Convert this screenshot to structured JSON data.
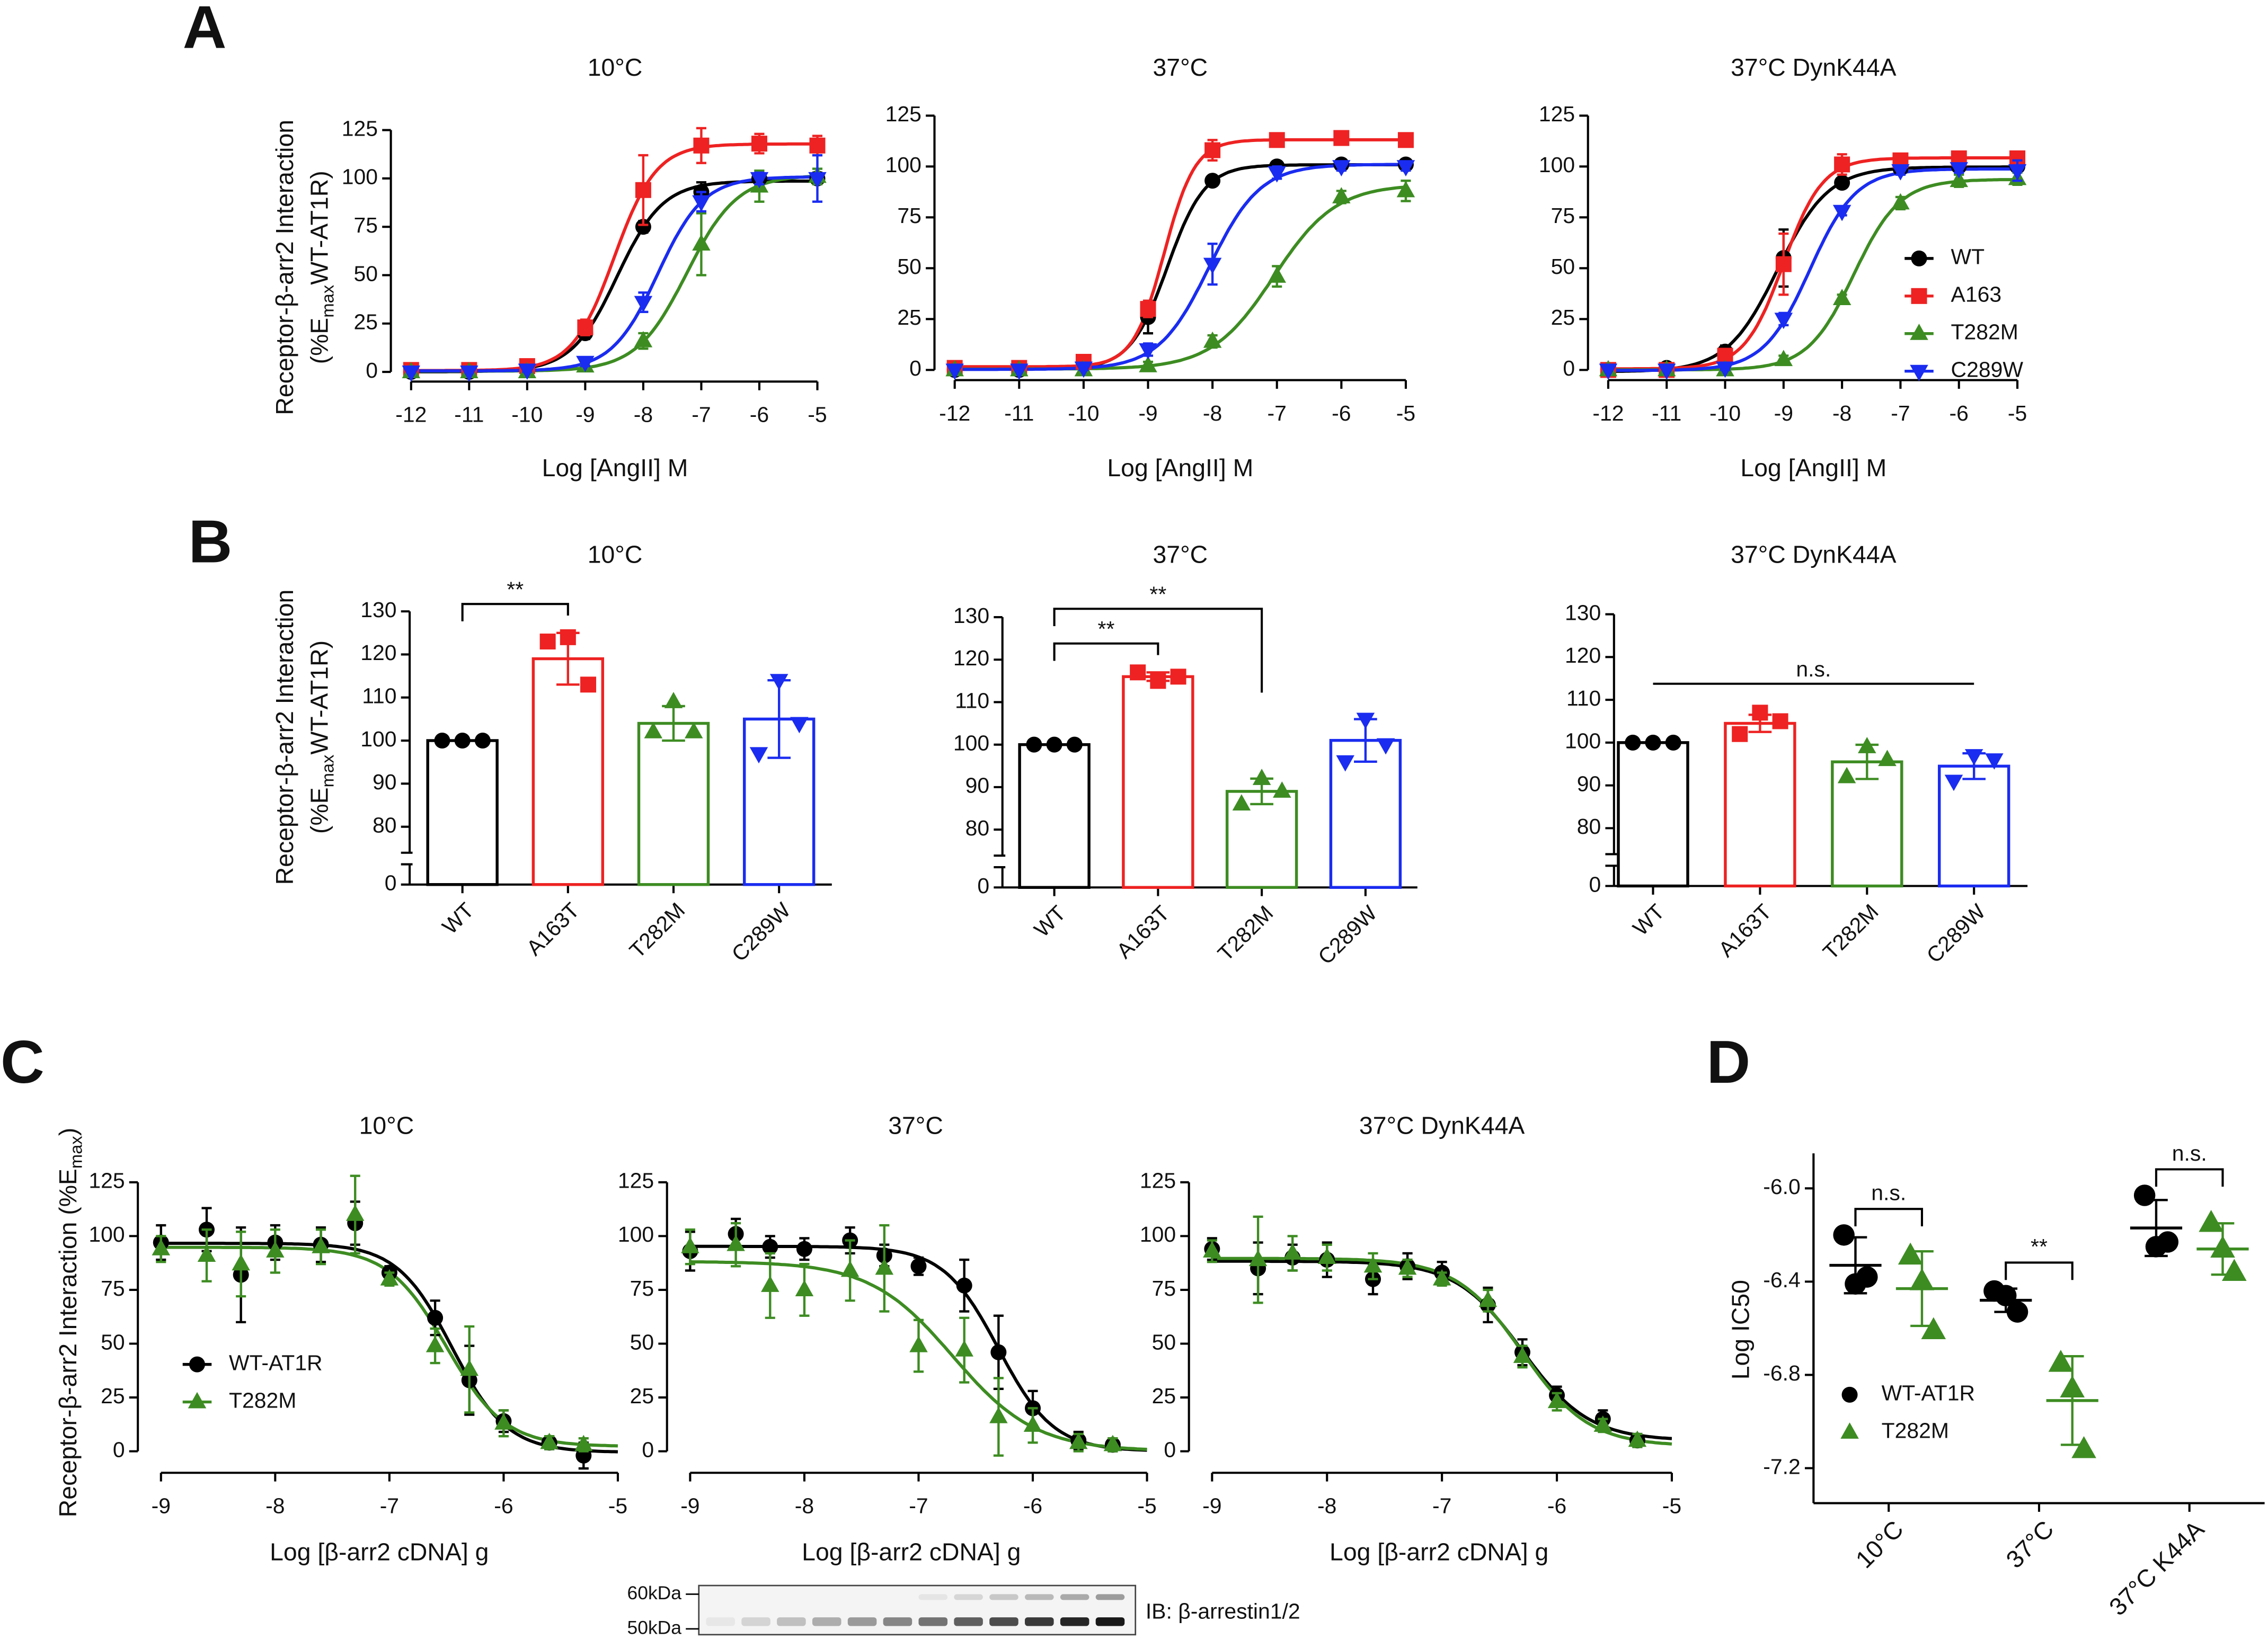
{
  "panel_labels": [
    "A",
    "B",
    "C",
    "D"
  ],
  "blot": {
    "markers": [
      "60kDa",
      "50kDa"
    ],
    "label": "IB: β-arrestin1/2"
  },
  "chart_data": [
    {
      "type": "line",
      "title": "10°C",
      "xlabel": "Log [AngII] M",
      "ylabel": [
        [
          "Receptor-β-arr2 Interaction"
        ],
        [
          "(%E",
          {
            "sub": "max"
          },
          "WT-AT1R)"
        ]
      ],
      "x": [
        -12,
        -11,
        -10,
        -9,
        -8,
        -7,
        -6,
        -5
      ],
      "xlim": [
        -12,
        -5
      ],
      "xticks": [
        -12,
        -11,
        -10,
        -9,
        -8,
        -7,
        -6,
        -5
      ],
      "ylim": [
        -5,
        125
      ],
      "yticks": [
        0,
        25,
        50,
        75,
        100,
        125
      ],
      "series": [
        {
          "color": "#000000",
          "marker": "circle",
          "values": [
            0,
            0,
            2,
            20,
            75,
            93,
            100,
            100
          ],
          "errors": [
            0,
            0,
            1,
            3,
            3,
            5,
            4,
            3
          ]
        },
        {
          "color": "#ee2222",
          "marker": "square",
          "values": [
            1,
            1,
            3,
            23,
            94,
            117,
            118,
            117
          ],
          "errors": [
            1,
            1,
            2,
            4,
            18,
            9,
            5,
            5
          ]
        },
        {
          "color": "#3d8c22",
          "marker": "triangle-up",
          "values": [
            0,
            0,
            0,
            3,
            16,
            66,
            96,
            101
          ],
          "errors": [
            0,
            0,
            1,
            2,
            4,
            16,
            8,
            4
          ]
        },
        {
          "color": "#1a2cf0",
          "marker": "triangle-down",
          "values": [
            0,
            0,
            1,
            5,
            36,
            88,
            100,
            100
          ],
          "errors": [
            0,
            0,
            1,
            2,
            5,
            5,
            3,
            12
          ]
        }
      ]
    },
    {
      "type": "line",
      "title": "37°C",
      "xlabel": "Log [AngII] M",
      "x": [
        -12,
        -11,
        -10,
        -9,
        -8,
        -7,
        -6,
        -5
      ],
      "xlim": [
        -12,
        -5
      ],
      "xticks": [
        -12,
        -11,
        -10,
        -9,
        -8,
        -7,
        -6,
        -5
      ],
      "ylim": [
        -5,
        125
      ],
      "yticks": [
        0,
        25,
        50,
        75,
        100,
        125
      ],
      "series": [
        {
          "color": "#000000",
          "marker": "circle",
          "values": [
            0,
            0,
            3,
            26,
            93,
            100,
            101,
            101
          ],
          "errors": [
            1,
            0,
            2,
            8,
            2,
            2,
            1,
            1
          ]
        },
        {
          "color": "#ee2222",
          "marker": "square",
          "values": [
            1,
            1,
            4,
            30,
            108,
            113,
            114,
            113
          ],
          "errors": [
            1,
            1,
            2,
            4,
            5,
            3,
            2,
            2
          ]
        },
        {
          "color": "#3d8c22",
          "marker": "triangle-up",
          "values": [
            0,
            0,
            0,
            2,
            14,
            46,
            85,
            88
          ],
          "errors": [
            1,
            0,
            1,
            2,
            3,
            5,
            3,
            5
          ]
        },
        {
          "color": "#1a2cf0",
          "marker": "triangle-down",
          "values": [
            0,
            0,
            1,
            10,
            52,
            97,
            100,
            100
          ],
          "errors": [
            0,
            0,
            1,
            3,
            10,
            3,
            2,
            2
          ]
        }
      ]
    },
    {
      "type": "line",
      "title": "37°C DynK44A",
      "xlabel": "Log [AngII] M",
      "legend": "center right",
      "x": [
        -12,
        -11,
        -10,
        -9,
        -8,
        -7,
        -6,
        -5
      ],
      "xlim": [
        -12,
        -5
      ],
      "xticks": [
        -12,
        -11,
        -10,
        -9,
        -8,
        -7,
        -6,
        -5
      ],
      "ylim": [
        -5,
        125
      ],
      "yticks": [
        0,
        25,
        50,
        75,
        100,
        125
      ],
      "series": [
        {
          "name": "WT",
          "color": "#000000",
          "marker": "circle",
          "values": [
            0,
            1,
            9,
            55,
            92,
            99,
            100,
            100
          ],
          "errors": [
            1,
            2,
            3,
            14,
            2,
            2,
            2,
            2
          ]
        },
        {
          "name": "A163",
          "color": "#ee2222",
          "marker": "square",
          "values": [
            0,
            0,
            7,
            52,
            101,
            103,
            104,
            104
          ],
          "errors": [
            1,
            1,
            2,
            15,
            5,
            3,
            3,
            2
          ]
        },
        {
          "name": "T282M",
          "color": "#3d8c22",
          "marker": "triangle-up",
          "values": [
            0,
            0,
            0,
            5,
            35,
            82,
            93,
            94
          ],
          "errors": [
            0,
            0,
            1,
            2,
            2,
            3,
            3,
            3
          ]
        },
        {
          "name": "C289W",
          "color": "#1a2cf0",
          "marker": "triangle-down",
          "values": [
            0,
            0,
            1,
            25,
            78,
            98,
            99,
            98
          ],
          "errors": [
            0,
            0,
            1,
            3,
            2,
            2,
            2,
            5
          ]
        }
      ]
    },
    {
      "type": "bar",
      "title": "10°C",
      "axis_break": true,
      "ylabel": [
        [
          "Receptor-β-arr2 Interaction"
        ],
        [
          "(%E",
          {
            "sub": "max"
          },
          "WT-AT1R)"
        ]
      ],
      "categories": [
        "WT",
        "A163T",
        "T282M",
        "C289W"
      ],
      "colors": [
        "#000000",
        "#ee2222",
        "#3d8c22",
        "#1a2cf0"
      ],
      "markers": [
        "circle",
        "square",
        "triangle-up",
        "triangle-down"
      ],
      "values": [
        100,
        119,
        104,
        105
      ],
      "errors": [
        0,
        6,
        4,
        9
      ],
      "points": [
        [
          100,
          100,
          100
        ],
        [
          123,
          124,
          113
        ],
        [
          102,
          109,
          102
        ],
        [
          97,
          114,
          104
        ]
      ],
      "ylim": [
        0,
        130
      ],
      "yticks": [
        0,
        80,
        90,
        100,
        110,
        120,
        130
      ],
      "annotations": [
        {
          "text": "**",
          "between": [
            "WT",
            "A163T"
          ]
        }
      ]
    },
    {
      "type": "bar",
      "title": "37°C",
      "axis_break": true,
      "categories": [
        "WT",
        "A163T",
        "T282M",
        "C289W"
      ],
      "colors": [
        "#000000",
        "#ee2222",
        "#3d8c22",
        "#1a2cf0"
      ],
      "markers": [
        "circle",
        "square",
        "triangle-up",
        "triangle-down"
      ],
      "values": [
        100,
        116,
        89,
        101
      ],
      "errors": [
        0,
        1,
        3,
        5
      ],
      "points": [
        [
          100,
          100,
          100
        ],
        [
          117,
          115,
          116
        ],
        [
          86,
          92,
          89
        ],
        [
          96,
          106,
          100
        ]
      ],
      "ylim": [
        0,
        130
      ],
      "yticks": [
        0,
        80,
        90,
        100,
        110,
        120,
        130
      ],
      "annotations": [
        {
          "text": "**",
          "between": [
            "WT",
            "A163T"
          ]
        },
        {
          "text": "**",
          "between": [
            "WT",
            "T282M"
          ]
        }
      ]
    },
    {
      "type": "bar",
      "title": "37°C DynK44A",
      "axis_break": true,
      "categories": [
        "WT",
        "A163T",
        "T282M",
        "C289W"
      ],
      "colors": [
        "#000000",
        "#ee2222",
        "#3d8c22",
        "#1a2cf0"
      ],
      "markers": [
        "circle",
        "square",
        "triangle-up",
        "triangle-down"
      ],
      "values": [
        100,
        104.5,
        95.5,
        94.5
      ],
      "errors": [
        0,
        2,
        4,
        3
      ],
      "points": [
        [
          100,
          100,
          100
        ],
        [
          102,
          107,
          105
        ],
        [
          92,
          99,
          96
        ],
        [
          91,
          97,
          96
        ]
      ],
      "ylim": [
        0,
        130
      ],
      "yticks": [
        0,
        80,
        90,
        100,
        110,
        120,
        130
      ],
      "annotations": [
        {
          "text": "n.s.",
          "between": [
            "WT",
            "C289W"
          ],
          "ticks": false
        }
      ]
    },
    {
      "type": "line",
      "title": "10°C",
      "xlabel": "Log [β-arr2 cDNA] g",
      "legend": "lower left",
      "ylabel": [
        [
          "Receptor-β-arr2 Interaction (%E",
          {
            "sub": "max"
          },
          ")"
        ]
      ],
      "x": [
        -9,
        -8.6,
        -8.3,
        -8,
        -7.6,
        -7.3,
        -7,
        -6.6,
        -6.3,
        -6,
        -5.6,
        -5.3
      ],
      "xlim": [
        -9,
        -5
      ],
      "xticks": [
        -9,
        -8,
        -7,
        -6,
        -5
      ],
      "ylim": [
        -10,
        125
      ],
      "yticks": [
        0,
        25,
        50,
        75,
        100,
        125
      ],
      "series": [
        {
          "name": "WT-AT1R",
          "color": "#000000",
          "marker": "circle",
          "values": [
            97,
            103,
            82,
            97,
            96,
            106,
            83,
            62,
            33,
            14,
            4,
            -2
          ],
          "errors": [
            8,
            10,
            22,
            8,
            8,
            10,
            3,
            8,
            16,
            5,
            3,
            6
          ]
        },
        {
          "name": "T282M",
          "color": "#3d8c22",
          "marker": "triangle-up",
          "values": [
            94,
            91,
            87,
            93,
            95,
            110,
            80,
            49,
            38,
            13,
            4,
            3
          ],
          "errors": [
            6,
            12,
            15,
            10,
            8,
            18,
            3,
            8,
            20,
            6,
            3,
            3
          ]
        }
      ]
    },
    {
      "type": "line",
      "title": "37°C",
      "xlabel": "Log [β-arr2 cDNA] g",
      "x": [
        -9,
        -8.6,
        -8.3,
        -8,
        -7.6,
        -7.3,
        -7,
        -6.6,
        -6.3,
        -6,
        -5.6,
        -5.3
      ],
      "xlim": [
        -9,
        -5
      ],
      "xticks": [
        -9,
        -8,
        -7,
        -6,
        -5
      ],
      "ylim": [
        -10,
        125
      ],
      "yticks": [
        0,
        25,
        50,
        75,
        100,
        125
      ],
      "series": [
        {
          "color": "#000000",
          "marker": "circle",
          "values": [
            93,
            101,
            95,
            94,
            98,
            91,
            86,
            77,
            46,
            20,
            5,
            3
          ],
          "errors": [
            9,
            7,
            5,
            5,
            6,
            5,
            4,
            12,
            17,
            8,
            4,
            3
          ]
        },
        {
          "color": "#3d8c22",
          "marker": "triangle-up",
          "values": [
            95,
            96,
            77,
            75,
            84,
            85,
            49,
            47,
            16,
            12,
            4,
            3
          ],
          "errors": [
            8,
            10,
            15,
            12,
            14,
            20,
            12,
            15,
            18,
            8,
            4,
            3
          ]
        }
      ]
    },
    {
      "type": "line",
      "title": "37°C DynK44A",
      "xlabel": "Log [β-arr2 cDNA] g",
      "x": [
        -9,
        -8.6,
        -8.3,
        -8,
        -7.6,
        -7.3,
        -7,
        -6.6,
        -6.3,
        -6,
        -5.6,
        -5.3
      ],
      "xlim": [
        -9,
        -5
      ],
      "xticks": [
        -9,
        -8,
        -7,
        -6,
        -5
      ],
      "ylim": [
        -10,
        125
      ],
      "yticks": [
        0,
        25,
        50,
        75,
        100,
        125
      ],
      "series": [
        {
          "color": "#000000",
          "marker": "circle",
          "values": [
            94,
            85,
            90,
            89,
            80,
            86,
            83,
            68,
            46,
            26,
            15,
            5
          ],
          "errors": [
            5,
            12,
            6,
            8,
            7,
            6,
            5,
            8,
            6,
            4,
            4,
            3
          ]
        },
        {
          "color": "#3d8c22",
          "marker": "triangle-up",
          "values": [
            93,
            89,
            92,
            90,
            86,
            85,
            80,
            70,
            44,
            23,
            12,
            5
          ],
          "errors": [
            5,
            20,
            8,
            6,
            6,
            4,
            3,
            5,
            5,
            4,
            3,
            3
          ]
        }
      ]
    },
    {
      "type": "strip",
      "legend": "lower left",
      "ylabel": [
        [
          "Log IC50"
        ]
      ],
      "categories": [
        "10°C",
        "37°C",
        "37°C K44A"
      ],
      "ylim": [
        -7.35,
        -5.85
      ],
      "yticks": [
        {
          "value": -6,
          "label": "-6.0"
        },
        -6.4,
        -6.8,
        -7.2
      ],
      "series": [
        {
          "name": "WT-AT1R",
          "color": "#000000",
          "marker": "circle",
          "values": [
            -6.33,
            -6.48,
            -6.17
          ],
          "errors": [
            0.12,
            0.05,
            0.12
          ],
          "points": [
            [
              -6.2,
              -6.41,
              -6.38
            ],
            [
              -6.44,
              -6.46,
              -6.53
            ],
            [
              -6.03,
              -6.25,
              -6.23
            ]
          ]
        },
        {
          "name": "T282M",
          "color": "#3d8c22",
          "marker": "triangle-up",
          "values": [
            -6.43,
            -6.91,
            -6.26
          ],
          "errors": [
            0.16,
            0.19,
            0.11
          ],
          "points": [
            [
              -6.29,
              -6.4,
              -6.61
            ],
            [
              -6.75,
              -6.86,
              -7.12
            ],
            [
              -6.15,
              -6.26,
              -6.36
            ]
          ]
        }
      ],
      "annotations": [
        {
          "text": "n.s.",
          "category": "10°C"
        },
        {
          "text": "**",
          "category": "37°C"
        },
        {
          "text": "n.s.",
          "category": "37°C K44A"
        }
      ]
    }
  ]
}
